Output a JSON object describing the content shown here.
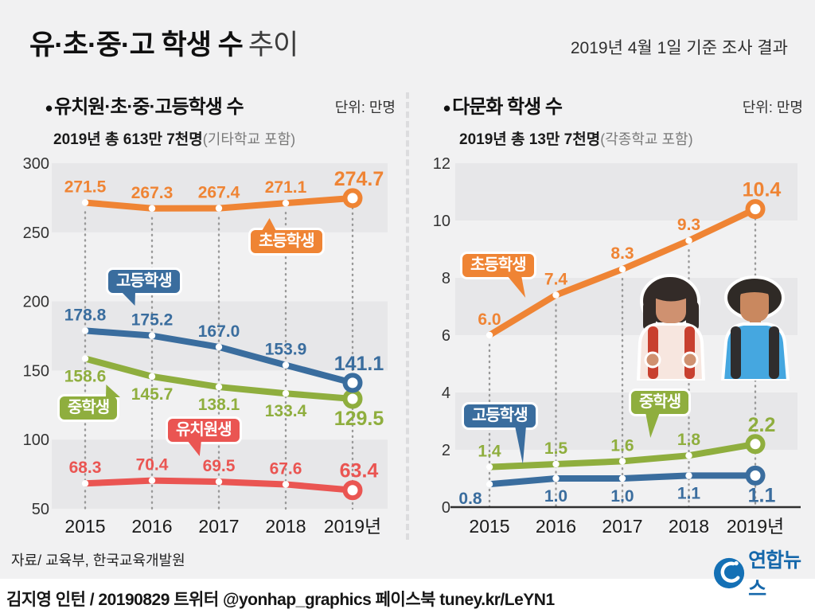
{
  "page": {
    "title_main": "유·초·중·고 학생 수",
    "title_light": "추이",
    "survey_note": "2019년 4월 1일 기준 조사 결과",
    "source": "자료/ 교육부, 한국교육개발원",
    "credit": "김지영 인턴 / 20190829 트위터 @yonhap_graphics  페이스북 tuney.kr/LeYN1",
    "logo_text": "연합뉴스"
  },
  "colors": {
    "elementary": "#ef8434",
    "middle": "#8fae3e",
    "high": "#3a6d9e",
    "kindergarten": "#ea5552",
    "band": "#e7e7e9",
    "background": "#f1f1f2",
    "dotted_guide": "#999999",
    "logo_blue": "#1470b5"
  },
  "chart_data": [
    {
      "type": "line",
      "bullet": "•",
      "title": "유치원·초·중·고등학생 수",
      "unit": "단위: 만명",
      "total_label": "2019년 총 613만 7천명",
      "total_note": "(기타학교 포함)",
      "categories": [
        "2015",
        "2016",
        "2017",
        "2018",
        "2019년"
      ],
      "ylim": [
        50,
        300
      ],
      "ytick_step": 50,
      "grid": "banded",
      "series": [
        {
          "name": "초등학생",
          "color": "#ef8434",
          "label_side": "above",
          "values": [
            271.5,
            267.3,
            267.4,
            271.1,
            274.7
          ]
        },
        {
          "name": "중학생",
          "color": "#8fae3e",
          "label_side": "below",
          "values": [
            158.6,
            145.7,
            138.1,
            133.4,
            129.5
          ]
        },
        {
          "name": "고등학생",
          "color": "#3a6d9e",
          "label_side": "above",
          "values": [
            178.8,
            175.2,
            167.0,
            153.9,
            141.1
          ]
        },
        {
          "name": "유치원생",
          "color": "#ea5552",
          "label_side": "above",
          "values": [
            68.3,
            70.4,
            69.5,
            67.6,
            63.4
          ]
        }
      ]
    },
    {
      "type": "line",
      "bullet": "•",
      "title": "다문화 학생 수",
      "unit": "단위: 만명",
      "total_label": "2019년 총 13만 7천명",
      "total_note": "(각종학교 포함)",
      "categories": [
        "2015",
        "2016",
        "2017",
        "2018",
        "2019년"
      ],
      "ylim": [
        0,
        12
      ],
      "ytick_step": 2,
      "grid": "banded",
      "series": [
        {
          "name": "초등학생",
          "color": "#ef8434",
          "label_side": "above",
          "values": [
            6.0,
            7.4,
            8.3,
            9.3,
            10.4
          ]
        },
        {
          "name": "중학생",
          "color": "#8fae3e",
          "label_side": "above",
          "values": [
            1.4,
            1.5,
            1.6,
            1.8,
            2.2
          ]
        },
        {
          "name": "고등학생",
          "color": "#3a6d9e",
          "label_side": "below",
          "values": [
            0.8,
            1.0,
            1.0,
            1.1,
            1.1
          ]
        }
      ]
    }
  ]
}
